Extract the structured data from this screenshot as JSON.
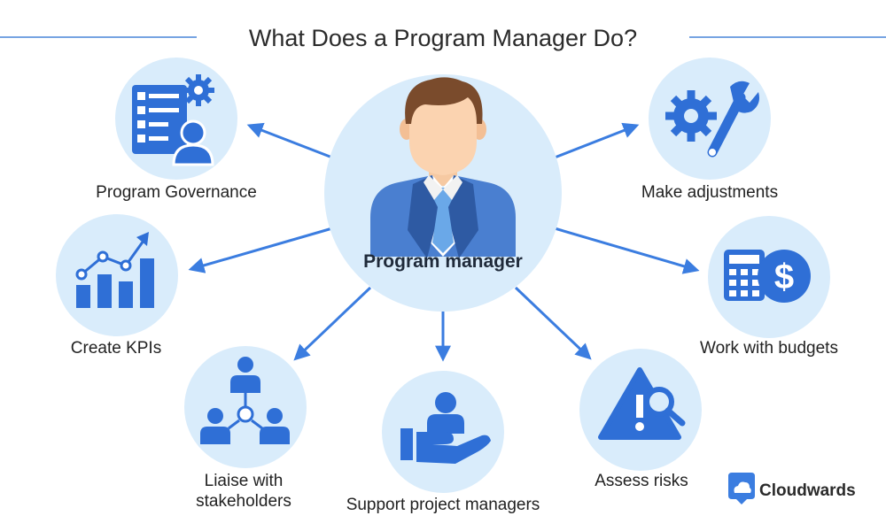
{
  "title": "What Does a Program Manager Do?",
  "center": {
    "label": "Program manager",
    "icon": "manager-avatar-icon"
  },
  "nodes": [
    {
      "id": "program-governance",
      "label": "Program Governance",
      "icon": "checklist-person-gear-icon"
    },
    {
      "id": "create-kpis",
      "label": "Create KPIs",
      "icon": "growth-chart-icon"
    },
    {
      "id": "liaise-stakeholders",
      "label_lines": [
        "Liaise with",
        "stakeholders"
      ],
      "icon": "network-people-icon"
    },
    {
      "id": "support-project-managers",
      "label": "Support project managers",
      "icon": "hand-support-person-icon"
    },
    {
      "id": "assess-risks",
      "label": "Assess risks",
      "icon": "warning-magnifier-icon"
    },
    {
      "id": "work-with-budgets",
      "label": "Work with budgets",
      "icon": "calculator-dollar-icon"
    },
    {
      "id": "make-adjustments",
      "label": "Make adjustments",
      "icon": "gear-wrench-icon"
    }
  ],
  "brand": {
    "name": "Cloudwards",
    "icon": "cloudwards-logo-icon"
  },
  "colors": {
    "primary_blue": "#2f6fd6",
    "circle_fill": "#d9ecfb",
    "arrow_blue": "#3b7de0",
    "title_line": "#4a86d8"
  }
}
